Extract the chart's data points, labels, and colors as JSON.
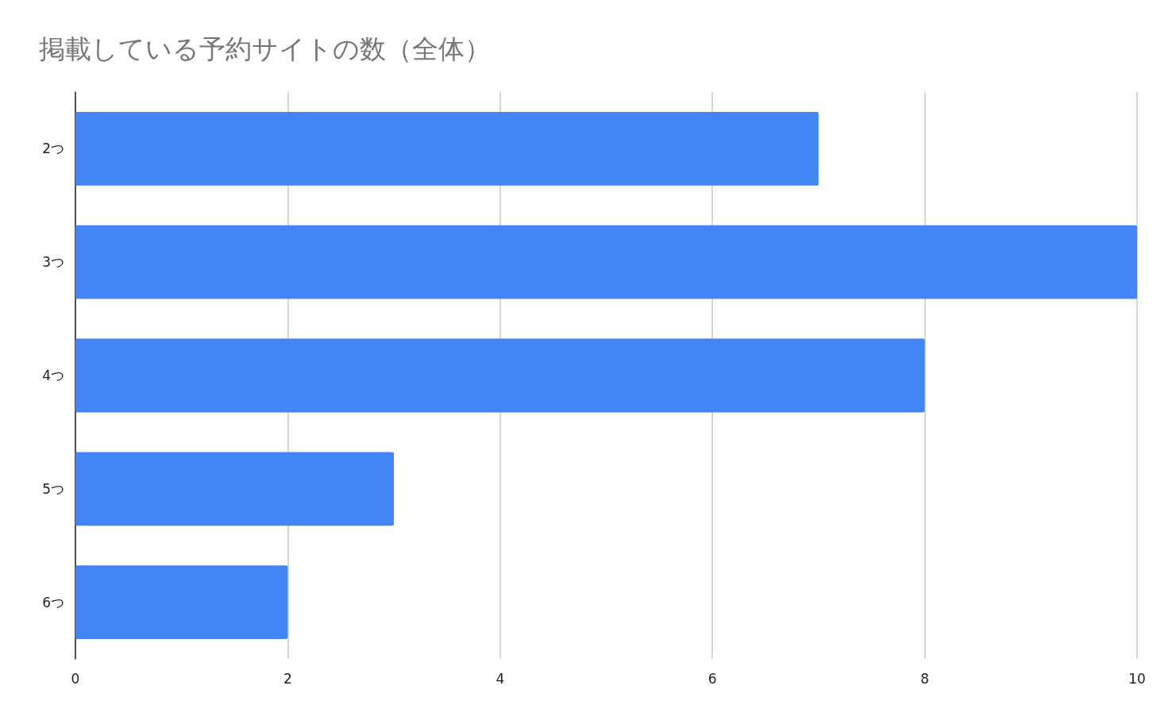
{
  "chart_data": {
    "type": "bar",
    "title": "掲載している予約サイトの数（全体）",
    "orientation": "horizontal",
    "categories": [
      "2つ",
      "3つ",
      "4つ",
      "5つ",
      "6つ"
    ],
    "values": [
      7,
      10,
      8,
      3,
      2
    ],
    "color": "#4285f4",
    "xlim": [
      0,
      10
    ],
    "xticks": [
      0,
      2,
      4,
      6,
      8,
      10
    ],
    "grid": "x"
  }
}
